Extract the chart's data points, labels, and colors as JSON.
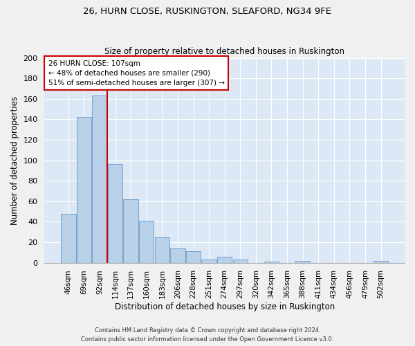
{
  "title": "26, HURN CLOSE, RUSKINGTON, SLEAFORD, NG34 9FE",
  "subtitle": "Size of property relative to detached houses in Ruskington",
  "xlabel": "Distribution of detached houses by size in Ruskington",
  "ylabel": "Number of detached properties",
  "bar_color": "#b8d0e8",
  "bar_edge_color": "#6699cc",
  "background_color": "#dce8f5",
  "grid_color": "#ffffff",
  "annotation_line_color": "#cc0000",
  "annotation_box_color": "#cc0000",
  "categories": [
    "46sqm",
    "69sqm",
    "92sqm",
    "114sqm",
    "137sqm",
    "160sqm",
    "183sqm",
    "206sqm",
    "228sqm",
    "251sqm",
    "274sqm",
    "297sqm",
    "320sqm",
    "342sqm",
    "365sqm",
    "388sqm",
    "411sqm",
    "434sqm",
    "456sqm",
    "479sqm",
    "502sqm"
  ],
  "values": [
    48,
    142,
    163,
    96,
    62,
    41,
    25,
    14,
    11,
    3,
    6,
    3,
    0,
    1,
    0,
    2,
    0,
    0,
    0,
    0,
    2
  ],
  "annotation_title": "26 HURN CLOSE: 107sqm",
  "annotation_line1": "← 48% of detached houses are smaller (290)",
  "annotation_line2": "51% of semi-detached houses are larger (307) →",
  "footer_line1": "Contains HM Land Registry data © Crown copyright and database right 2024.",
  "footer_line2": "Contains public sector information licensed under the Open Government Licence v3.0.",
  "ylim": [
    0,
    200
  ],
  "yticks": [
    0,
    20,
    40,
    60,
    80,
    100,
    120,
    140,
    160,
    180,
    200
  ],
  "red_line_x": 2.5
}
